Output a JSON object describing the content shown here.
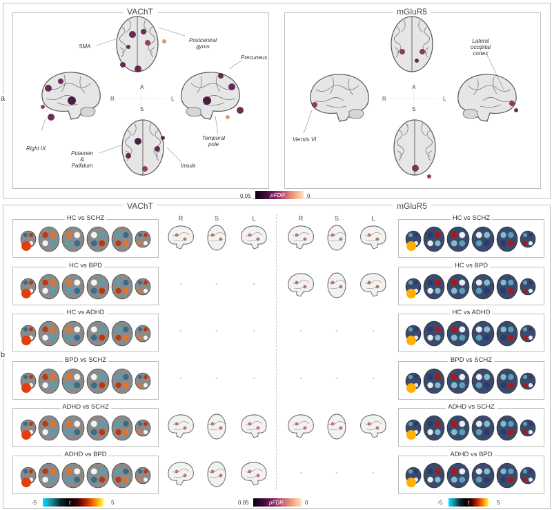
{
  "panel_a": {
    "side_label": "a",
    "vacht": {
      "title": "VAChT",
      "annotations": {
        "sma": "SMA",
        "postcentral": "Postcentral\ngyrus",
        "precuneus": "Precuneus",
        "right_ix": "Right IX",
        "temporal_pole": "Temporal\npole",
        "putamen": "Putamen\n&\nPallidum",
        "insula": "Insula"
      },
      "orientation": {
        "r": "R",
        "a": "A",
        "l": "L",
        "s": "S"
      }
    },
    "mglur5": {
      "title": "mGluR5",
      "annotations": {
        "lateral_occipital": "Lateral\noccipital\ncortex",
        "vermis": "Vermis VI"
      },
      "orientation": {
        "r": "R",
        "a": "A",
        "l": "L",
        "s": "S"
      }
    },
    "colorbar": {
      "min": "0.05",
      "label": "pFDR",
      "max": "0"
    }
  },
  "panel_b": {
    "side_label": "b",
    "vacht_title": "VAChT",
    "mglur5_title": "mGluR5",
    "view_labels": [
      "R",
      "S",
      "L"
    ],
    "comparisons": [
      {
        "label": "HC vs SCHZ",
        "vacht_views": true,
        "mglur5_views": true
      },
      {
        "label": "HC vs BPD",
        "vacht_views": false,
        "mglur5_views": true
      },
      {
        "label": "HC vs ADHD",
        "vacht_views": false,
        "mglur5_views": false
      },
      {
        "label": "BPD vs SCHZ",
        "vacht_views": false,
        "mglur5_views": false
      },
      {
        "label": "ADHD vs SCHZ",
        "vacht_views": true,
        "mglur5_views": true
      },
      {
        "label": "ADHD vs BPD",
        "vacht_views": true,
        "mglur5_views": false
      }
    ],
    "dash": "-",
    "tbar_left": {
      "min": "-5",
      "label": "t",
      "max": "5"
    },
    "pbar": {
      "min": "0.05",
      "label": "pFDR",
      "max": "0"
    },
    "tbar_right": {
      "min": "-5",
      "label": "t",
      "max": "5"
    }
  },
  "colors": {
    "frame": "#bdbdbd",
    "brain_fill": "#e8e8e8",
    "brain_stroke": "#555555",
    "hot_dark": "#4a0c3c",
    "hot_mid": "#8b2a5a",
    "cool": "#5fa8c4",
    "heat": "#f07020"
  }
}
